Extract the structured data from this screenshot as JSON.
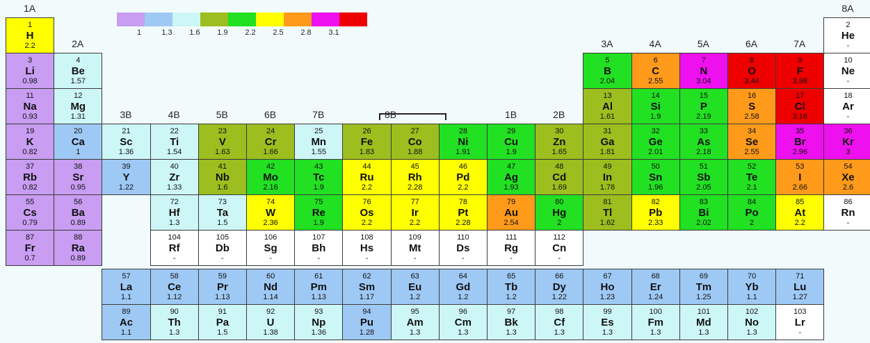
{
  "groups": [
    "1A",
    "2A",
    "3B",
    "4B",
    "5B",
    "6B",
    "7B",
    "8B",
    "1B",
    "2B",
    "3A",
    "4A",
    "5A",
    "6A",
    "7A",
    "8A"
  ],
  "legend": {
    "labels": [
      "1",
      "1.3",
      "1.6",
      "1.9",
      "2.2",
      "2.5",
      "2.8",
      "3.1"
    ],
    "colors": [
      "#c89df2",
      "#9fc9f5",
      "#cdf6f7",
      "#9cbe1e",
      "#22e022",
      "#ffff00",
      "#ff9a1a",
      "#ee10ee",
      "#ee0000"
    ]
  },
  "colors": {
    "c1": "#c89df2",
    "c2": "#9fc9f5",
    "c3": "#cdf6f7",
    "c4": "#9cbe1e",
    "c5": "#22e022",
    "c6": "#ffff00",
    "c7": "#ff9a1a",
    "c8": "#ee10ee",
    "c9": "#ee0000",
    "w": "#ffffff"
  },
  "elements": [
    {
      "n": "1",
      "s": "H",
      "e": "2.2",
      "c": "c6"
    },
    {
      "n": "2",
      "s": "He",
      "e": "-",
      "c": "w"
    },
    {
      "n": "3",
      "s": "Li",
      "e": "0.98",
      "c": "c1"
    },
    {
      "n": "4",
      "s": "Be",
      "e": "1.57",
      "c": "c3"
    },
    {
      "n": "5",
      "s": "B",
      "e": "2.04",
      "c": "c5"
    },
    {
      "n": "6",
      "s": "C",
      "e": "2.55",
      "c": "c7"
    },
    {
      "n": "7",
      "s": "N",
      "e": "3.04",
      "c": "c8"
    },
    {
      "n": "8",
      "s": "O",
      "e": "3.44",
      "c": "c9"
    },
    {
      "n": "9",
      "s": "F",
      "e": "3.98",
      "c": "c9"
    },
    {
      "n": "10",
      "s": "Ne",
      "e": "-",
      "c": "w"
    },
    {
      "n": "11",
      "s": "Na",
      "e": "0.93",
      "c": "c1"
    },
    {
      "n": "12",
      "s": "Mg",
      "e": "1.31",
      "c": "c3"
    },
    {
      "n": "13",
      "s": "Al",
      "e": "1.61",
      "c": "c4"
    },
    {
      "n": "14",
      "s": "Si",
      "e": "1.9",
      "c": "c5"
    },
    {
      "n": "15",
      "s": "P",
      "e": "2.19",
      "c": "c5"
    },
    {
      "n": "16",
      "s": "S",
      "e": "2.58",
      "c": "c7"
    },
    {
      "n": "17",
      "s": "Cl",
      "e": "3.16",
      "c": "c9"
    },
    {
      "n": "18",
      "s": "Ar",
      "e": "-",
      "c": "w"
    },
    {
      "n": "19",
      "s": "K",
      "e": "0.82",
      "c": "c1"
    },
    {
      "n": "20",
      "s": "Ca",
      "e": "1",
      "c": "c2"
    },
    {
      "n": "21",
      "s": "Sc",
      "e": "1.36",
      "c": "c3"
    },
    {
      "n": "22",
      "s": "Ti",
      "e": "1.54",
      "c": "c3"
    },
    {
      "n": "23",
      "s": "V",
      "e": "1.63",
      "c": "c4"
    },
    {
      "n": "24",
      "s": "Cr",
      "e": "1.66",
      "c": "c4"
    },
    {
      "n": "25",
      "s": "Mn",
      "e": "1.55",
      "c": "c3"
    },
    {
      "n": "26",
      "s": "Fe",
      "e": "1.83",
      "c": "c4"
    },
    {
      "n": "27",
      "s": "Co",
      "e": "1.88",
      "c": "c4"
    },
    {
      "n": "28",
      "s": "Ni",
      "e": "1.91",
      "c": "c5"
    },
    {
      "n": "29",
      "s": "Cu",
      "e": "1.9",
      "c": "c5"
    },
    {
      "n": "30",
      "s": "Zn",
      "e": "1.65",
      "c": "c4"
    },
    {
      "n": "31",
      "s": "Ga",
      "e": "1.81",
      "c": "c4"
    },
    {
      "n": "32",
      "s": "Ge",
      "e": "2.01",
      "c": "c5"
    },
    {
      "n": "33",
      "s": "As",
      "e": "2.18",
      "c": "c5"
    },
    {
      "n": "34",
      "s": "Se",
      "e": "2.55",
      "c": "c7"
    },
    {
      "n": "35",
      "s": "Br",
      "e": "2.96",
      "c": "c8"
    },
    {
      "n": "36",
      "s": "Kr",
      "e": "3",
      "c": "c8"
    },
    {
      "n": "37",
      "s": "Rb",
      "e": "0.82",
      "c": "c1"
    },
    {
      "n": "38",
      "s": "Sr",
      "e": "0.95",
      "c": "c1"
    },
    {
      "n": "39",
      "s": "Y",
      "e": "1.22",
      "c": "c2"
    },
    {
      "n": "40",
      "s": "Zr",
      "e": "1.33",
      "c": "c3"
    },
    {
      "n": "41",
      "s": "Nb",
      "e": "1.6",
      "c": "c4"
    },
    {
      "n": "42",
      "s": "Mo",
      "e": "2.16",
      "c": "c5"
    },
    {
      "n": "43",
      "s": "Tc",
      "e": "1.9",
      "c": "c5"
    },
    {
      "n": "44",
      "s": "Ru",
      "e": "2.2",
      "c": "c6"
    },
    {
      "n": "45",
      "s": "Rh",
      "e": "2.28",
      "c": "c6"
    },
    {
      "n": "46",
      "s": "Pd",
      "e": "2.2",
      "c": "c6"
    },
    {
      "n": "47",
      "s": "Ag",
      "e": "1.93",
      "c": "c5"
    },
    {
      "n": "48",
      "s": "Cd",
      "e": "1.69",
      "c": "c4"
    },
    {
      "n": "49",
      "s": "In",
      "e": "1.78",
      "c": "c4"
    },
    {
      "n": "50",
      "s": "Sn",
      "e": "1.96",
      "c": "c5"
    },
    {
      "n": "51",
      "s": "Sb",
      "e": "2.05",
      "c": "c5"
    },
    {
      "n": "52",
      "s": "Te",
      "e": "2.1",
      "c": "c5"
    },
    {
      "n": "53",
      "s": "I",
      "e": "2.66",
      "c": "c7"
    },
    {
      "n": "54",
      "s": "Xe",
      "e": "2.6",
      "c": "c7"
    },
    {
      "n": "55",
      "s": "Cs",
      "e": "0.79",
      "c": "c1"
    },
    {
      "n": "56",
      "s": "Ba",
      "e": "0.89",
      "c": "c1"
    },
    {
      "n": "72",
      "s": "Hf",
      "e": "1.3",
      "c": "c3"
    },
    {
      "n": "73",
      "s": "Ta",
      "e": "1.5",
      "c": "c3"
    },
    {
      "n": "74",
      "s": "W",
      "e": "2.36",
      "c": "c6"
    },
    {
      "n": "75",
      "s": "Re",
      "e": "1.9",
      "c": "c5"
    },
    {
      "n": "76",
      "s": "Os",
      "e": "2.2",
      "c": "c6"
    },
    {
      "n": "77",
      "s": "Ir",
      "e": "2.2",
      "c": "c6"
    },
    {
      "n": "78",
      "s": "Pt",
      "e": "2.28",
      "c": "c6"
    },
    {
      "n": "79",
      "s": "Au",
      "e": "2.54",
      "c": "c7"
    },
    {
      "n": "80",
      "s": "Hg",
      "e": "2",
      "c": "c5"
    },
    {
      "n": "81",
      "s": "Tl",
      "e": "1.62",
      "c": "c4"
    },
    {
      "n": "82",
      "s": "Pb",
      "e": "2.33",
      "c": "c6"
    },
    {
      "n": "83",
      "s": "Bi",
      "e": "2.02",
      "c": "c5"
    },
    {
      "n": "84",
      "s": "Po",
      "e": "2",
      "c": "c5"
    },
    {
      "n": "85",
      "s": "At",
      "e": "2.2",
      "c": "c6"
    },
    {
      "n": "86",
      "s": "Rn",
      "e": "-",
      "c": "w"
    },
    {
      "n": "87",
      "s": "Fr",
      "e": "0.7",
      "c": "c1"
    },
    {
      "n": "88",
      "s": "Ra",
      "e": "0.89",
      "c": "c1"
    },
    {
      "n": "104",
      "s": "Rf",
      "e": "-",
      "c": "w"
    },
    {
      "n": "105",
      "s": "Db",
      "e": "-",
      "c": "w"
    },
    {
      "n": "106",
      "s": "Sg",
      "e": "-",
      "c": "w"
    },
    {
      "n": "107",
      "s": "Bh",
      "e": "-",
      "c": "w"
    },
    {
      "n": "108",
      "s": "Hs",
      "e": "-",
      "c": "w"
    },
    {
      "n": "109",
      "s": "Mt",
      "e": "-",
      "c": "w"
    },
    {
      "n": "110",
      "s": "Ds",
      "e": "-",
      "c": "w"
    },
    {
      "n": "111",
      "s": "Rg",
      "e": "-",
      "c": "w"
    },
    {
      "n": "112",
      "s": "Cn",
      "e": "-",
      "c": "w"
    },
    {
      "n": "57",
      "s": "La",
      "e": "1.1",
      "c": "c2"
    },
    {
      "n": "58",
      "s": "Ce",
      "e": "1.12",
      "c": "c2"
    },
    {
      "n": "59",
      "s": "Pr",
      "e": "1.13",
      "c": "c2"
    },
    {
      "n": "60",
      "s": "Nd",
      "e": "1.14",
      "c": "c2"
    },
    {
      "n": "61",
      "s": "Pm",
      "e": "1.13",
      "c": "c2"
    },
    {
      "n": "62",
      "s": "Sm",
      "e": "1.17",
      "c": "c2"
    },
    {
      "n": "63",
      "s": "Eu",
      "e": "1.2",
      "c": "c2"
    },
    {
      "n": "64",
      "s": "Gd",
      "e": "1.2",
      "c": "c2"
    },
    {
      "n": "65",
      "s": "Tb",
      "e": "1.2",
      "c": "c2"
    },
    {
      "n": "66",
      "s": "Dy",
      "e": "1.22",
      "c": "c2"
    },
    {
      "n": "67",
      "s": "Ho",
      "e": "1.23",
      "c": "c2"
    },
    {
      "n": "68",
      "s": "Er",
      "e": "1.24",
      "c": "c2"
    },
    {
      "n": "69",
      "s": "Tm",
      "e": "1.25",
      "c": "c2"
    },
    {
      "n": "70",
      "s": "Yb",
      "e": "1.1",
      "c": "c2"
    },
    {
      "n": "71",
      "s": "Lu",
      "e": "1.27",
      "c": "c2"
    },
    {
      "n": "89",
      "s": "Ac",
      "e": "1.1",
      "c": "c2"
    },
    {
      "n": "90",
      "s": "Th",
      "e": "1.3",
      "c": "c3"
    },
    {
      "n": "91",
      "s": "Pa",
      "e": "1.5",
      "c": "c3"
    },
    {
      "n": "92",
      "s": "U",
      "e": "1.38",
      "c": "c3"
    },
    {
      "n": "93",
      "s": "Np",
      "e": "1.36",
      "c": "c3"
    },
    {
      "n": "94",
      "s": "Pu",
      "e": "1.28",
      "c": "c2"
    },
    {
      "n": "95",
      "s": "Am",
      "e": "1.3",
      "c": "c3"
    },
    {
      "n": "96",
      "s": "Cm",
      "e": "1.3",
      "c": "c3"
    },
    {
      "n": "97",
      "s": "Bk",
      "e": "1.3",
      "c": "c3"
    },
    {
      "n": "98",
      "s": "Cf",
      "e": "1.3",
      "c": "c3"
    },
    {
      "n": "99",
      "s": "Es",
      "e": "1.3",
      "c": "c3"
    },
    {
      "n": "100",
      "s": "Fm",
      "e": "1.3",
      "c": "c3"
    },
    {
      "n": "101",
      "s": "Md",
      "e": "1.3",
      "c": "c3"
    },
    {
      "n": "102",
      "s": "No",
      "e": "1.3",
      "c": "c3"
    },
    {
      "n": "103",
      "s": "Lr",
      "e": "-",
      "c": "w"
    }
  ]
}
